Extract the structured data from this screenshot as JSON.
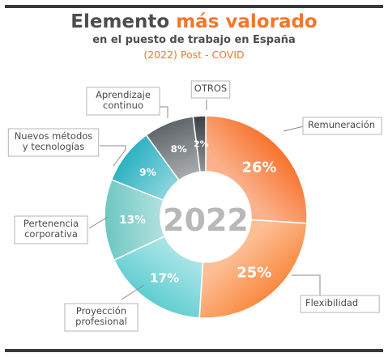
{
  "header": {
    "title_lead": "Elemento",
    "title_accent": "más valorado",
    "subtitle": "en el puesto de trabajo en España",
    "period": "(2022) Post - COVID"
  },
  "chart_data": {
    "type": "pie",
    "variant": "donut",
    "center_label": "2022",
    "categories": [
      "Remuneración",
      "Flexibilidad",
      "Proyección profesional",
      "Pertenencia corporativa",
      "Nuevos métodos y tecnologías",
      "Aprendizaje continuo",
      "OTROS"
    ],
    "label_lines": [
      [
        "Remuneración"
      ],
      [
        "Flexibilidad"
      ],
      [
        "Proyección",
        "profesional"
      ],
      [
        "Pertenencia",
        "corporativa"
      ],
      [
        "Nuevos métodos",
        "y tecnologías"
      ],
      [
        "Aprendizaje",
        "continuo"
      ],
      [
        "OTROS"
      ]
    ],
    "values": [
      26,
      25,
      17,
      13,
      9,
      8,
      2
    ],
    "value_labels": [
      "26%",
      "25%",
      "17%",
      "13%",
      "9%",
      "8%",
      "2%"
    ],
    "colors": [
      "#f7722c",
      "#f9893f",
      "#5fcdd0",
      "#6cc7c2",
      "#2bb1c2",
      "#5e6568",
      "#3a3f42"
    ]
  }
}
